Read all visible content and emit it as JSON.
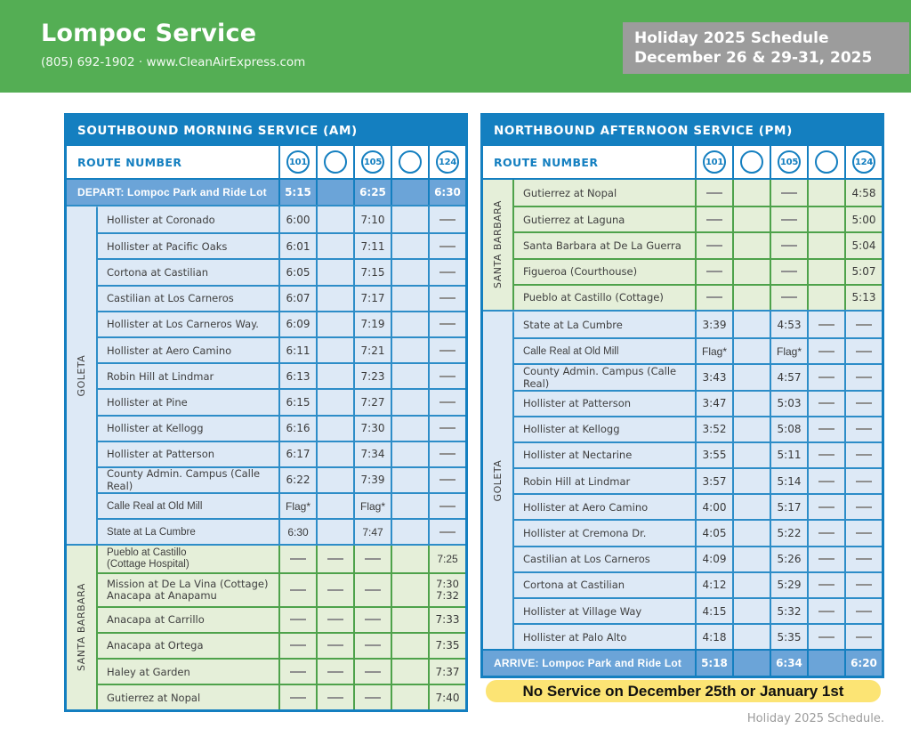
{
  "header": {
    "title": "Lompoc Service",
    "subtitle": "(805) 692-1902 · www.CleanAirExpress.com",
    "badge_line1": "Holiday 2025 Schedule",
    "badge_line2": "December 26 & 29-31, 2025"
  },
  "notice": "No Service on December 25th or January 1st",
  "footer": "Holiday 2025 Schedule.",
  "colors": {
    "header_green": "#54ae54",
    "table_blue": "#147fc0",
    "blue_row_bg": "#dde9f6",
    "blue_row_border": "#2d8dc8",
    "terminal_row_bg": "#6ba4d8",
    "green_row_bg": "#e5efd9",
    "green_row_border": "#4ea24b",
    "badge_gray": "#9c9c9c",
    "notice_yellow": "#fce474",
    "dash_gray": "#8f8f8f"
  },
  "tables": [
    {
      "id": "southbound",
      "title": "SOUTHBOUND MORNING SERVICE (AM)",
      "route_label": "ROUTE NUMBER",
      "routes": [
        "101",
        "",
        "105",
        "",
        "124"
      ],
      "depart": {
        "label": "DEPART: Lompoc Park and Ride Lot",
        "times": [
          "5:15",
          "",
          "6:25",
          "",
          "6:30"
        ]
      },
      "sections": [
        {
          "label": "GOLETA",
          "theme": "blue",
          "rows": [
            {
              "stop": "Hollister at Coronado",
              "cells": [
                "6:00",
                "",
                "7:10",
                "",
                "—"
              ]
            },
            {
              "stop": "Hollister at Pacific Oaks",
              "cells": [
                "6:01",
                "",
                "7:11",
                "",
                "—"
              ]
            },
            {
              "stop": "Cortona at Castilian",
              "cells": [
                "6:05",
                "",
                "7:15",
                "",
                "—"
              ]
            },
            {
              "stop": "Castilian at Los Carneros",
              "cells": [
                "6:07",
                "",
                "7:17",
                "",
                "—"
              ]
            },
            {
              "stop": "Hollister at Los Carneros Way.",
              "cells": [
                "6:09",
                "",
                "7:19",
                "",
                "—"
              ]
            },
            {
              "stop": "Hollister at Aero Camino",
              "cells": [
                "6:11",
                "",
                "7:21",
                "",
                "—"
              ]
            },
            {
              "stop": "Robin Hill at Lindmar",
              "cells": [
                "6:13",
                "",
                "7:23",
                "",
                "—"
              ]
            },
            {
              "stop": "Hollister at Pine",
              "cells": [
                "6:15",
                "",
                "7:27",
                "",
                "—"
              ]
            },
            {
              "stop": "Hollister at Kellogg",
              "cells": [
                "6:16",
                "",
                "7:30",
                "",
                "—"
              ]
            },
            {
              "stop": "Hollister at Patterson",
              "cells": [
                "6:17",
                "",
                "7:34",
                "",
                "—"
              ]
            },
            {
              "stop": "County Admin. Campus (Calle Real)",
              "cells": [
                "6:22",
                "",
                "7:39",
                "",
                "—"
              ]
            },
            {
              "stop": "Calle Real at Old Mill",
              "cells": [
                "Flag*",
                "",
                "Flag*",
                "",
                "—"
              ],
              "alt": true
            },
            {
              "stop": "State at La Cumbre",
              "cells": [
                "6:30",
                "",
                "7:47",
                "",
                "—"
              ],
              "alt": true
            }
          ]
        },
        {
          "label": "SANTA BARBARA",
          "theme": "green",
          "rows": [
            {
              "stop": "Pueblo at Castillo\n(Cottage Hospital)",
              "cells": [
                "—",
                "—",
                "—",
                "",
                "7:25"
              ],
              "alt": true
            },
            {
              "stop": "Mission at De La Vina (Cottage)\nAnacapa at Anapamu",
              "cells": [
                "—",
                "—",
                "—",
                "",
                "7:30\n7:32"
              ],
              "tall": true
            },
            {
              "stop": "Anacapa at Carrillo",
              "cells": [
                "—",
                "—",
                "—",
                "",
                "7:33"
              ]
            },
            {
              "stop": "Anacapa at Ortega",
              "cells": [
                "—",
                "—",
                "—",
                "",
                "7:35"
              ]
            },
            {
              "stop": "Haley at Garden",
              "cells": [
                "—",
                "—",
                "—",
                "",
                "7:37"
              ]
            },
            {
              "stop": "Gutierrez at Nopal",
              "cells": [
                "—",
                "—",
                "—",
                "",
                "7:40"
              ]
            }
          ]
        }
      ]
    },
    {
      "id": "northbound",
      "title": "NORTHBOUND AFTERNOON SERVICE (PM)",
      "route_label": "ROUTE NUMBER",
      "routes": [
        "101",
        "",
        "105",
        "",
        "124"
      ],
      "sections": [
        {
          "label": "SANTA BARBARA",
          "theme": "green",
          "rows": [
            {
              "stop": "Gutierrez at Nopal",
              "cells": [
                "—",
                "",
                "—",
                "",
                "4:58"
              ]
            },
            {
              "stop": "Gutierrez at Laguna",
              "cells": [
                "—",
                "",
                "—",
                "",
                "5:00"
              ]
            },
            {
              "stop": "Santa Barbara at De La Guerra",
              "cells": [
                "—",
                "",
                "—",
                "",
                "5:04"
              ]
            },
            {
              "stop": "Figueroa (Courthouse)",
              "cells": [
                "—",
                "",
                "—",
                "",
                "5:07"
              ]
            },
            {
              "stop": "Pueblo at Castillo (Cottage)",
              "cells": [
                "—",
                "",
                "—",
                "",
                "5:13"
              ]
            }
          ]
        },
        {
          "label": "GOLETA",
          "theme": "blue",
          "rows": [
            {
              "stop": "State at La Cumbre",
              "cells": [
                "3:39",
                "",
                "4:53",
                "—",
                "—"
              ]
            },
            {
              "stop": "Calle Real at Old Mill",
              "cells": [
                "Flag*",
                "",
                "Flag*",
                "—",
                "—"
              ],
              "alt": true
            },
            {
              "stop": "County Admin. Campus (Calle Real)",
              "cells": [
                "3:43",
                "",
                "4:57",
                "—",
                "—"
              ]
            },
            {
              "stop": "Hollister at Patterson",
              "cells": [
                "3:47",
                "",
                "5:03",
                "—",
                "—"
              ]
            },
            {
              "stop": "Hollister at Kellogg",
              "cells": [
                "3:52",
                "",
                "5:08",
                "—",
                "—"
              ]
            },
            {
              "stop": "Hollister at Nectarine",
              "cells": [
                "3:55",
                "",
                "5:11",
                "—",
                "—"
              ]
            },
            {
              "stop": "Robin Hill at Lindmar",
              "cells": [
                "3:57",
                "",
                "5:14",
                "—",
                "—"
              ]
            },
            {
              "stop": "Hollister at Aero Camino",
              "cells": [
                "4:00",
                "",
                "5:17",
                "—",
                "—"
              ]
            },
            {
              "stop": "Hollister at Cremona Dr.",
              "cells": [
                "4:05",
                "",
                "5:22",
                "—",
                "—"
              ]
            },
            {
              "stop": "Castilian at Los Carneros",
              "cells": [
                "4:09",
                "",
                "5:26",
                "—",
                "—"
              ]
            },
            {
              "stop": "Cortona at Castilian",
              "cells": [
                "4:12",
                "",
                "5:29",
                "—",
                "—"
              ]
            },
            {
              "stop": "Hollister at Village Way",
              "cells": [
                "4:15",
                "",
                "5:32",
                "—",
                "—"
              ]
            },
            {
              "stop": "Hollister at Palo Alto",
              "cells": [
                "4:18",
                "",
                "5:35",
                "—",
                "—"
              ]
            }
          ]
        }
      ],
      "arrive": {
        "label": "ARRIVE: Lompoc Park and Ride Lot",
        "times": [
          "5:18",
          "",
          "6:34",
          "",
          "6:20"
        ]
      }
    }
  ]
}
